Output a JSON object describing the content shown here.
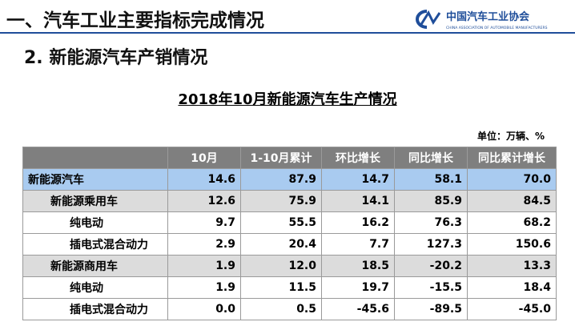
{
  "header": {
    "title": "一、汽车工业主要指标完成情况",
    "logo_name": "中国汽车工业协会",
    "logo_english": "CHINA ASSOCIATION OF AUTOMOBILE MANUFACTURERS"
  },
  "subtitle": "2. 新能源汽车产销情况",
  "table": {
    "title": "2018年10月新能源汽车生产情况",
    "unit": "单位：万辆、%",
    "columns": [
      "",
      "10月",
      "1-10月累计",
      "环比增长",
      "同比增长",
      "同比累计增长"
    ],
    "rows": [
      [
        "新能源汽车",
        "14.6",
        "87.9",
        "14.7",
        "58.1",
        "70.0"
      ],
      [
        "新能源乘用车",
        "12.6",
        "75.9",
        "14.1",
        "85.9",
        "84.5"
      ],
      [
        "纯电动",
        "9.7",
        "55.5",
        "16.2",
        "76.3",
        "68.2"
      ],
      [
        "插电式混合动力",
        "2.9",
        "20.4",
        "7.7",
        "127.3",
        "150.6"
      ],
      [
        "新能源商用车",
        "1.9",
        "12.0",
        "18.5",
        "-20.2",
        "13.3"
      ],
      [
        "纯电动",
        "1.9",
        "11.5",
        "19.7",
        "-15.5",
        "18.4"
      ],
      [
        "插电式混合动力",
        "0.0",
        "0.5",
        "-45.6",
        "-89.5",
        "-45.0"
      ]
    ]
  }
}
